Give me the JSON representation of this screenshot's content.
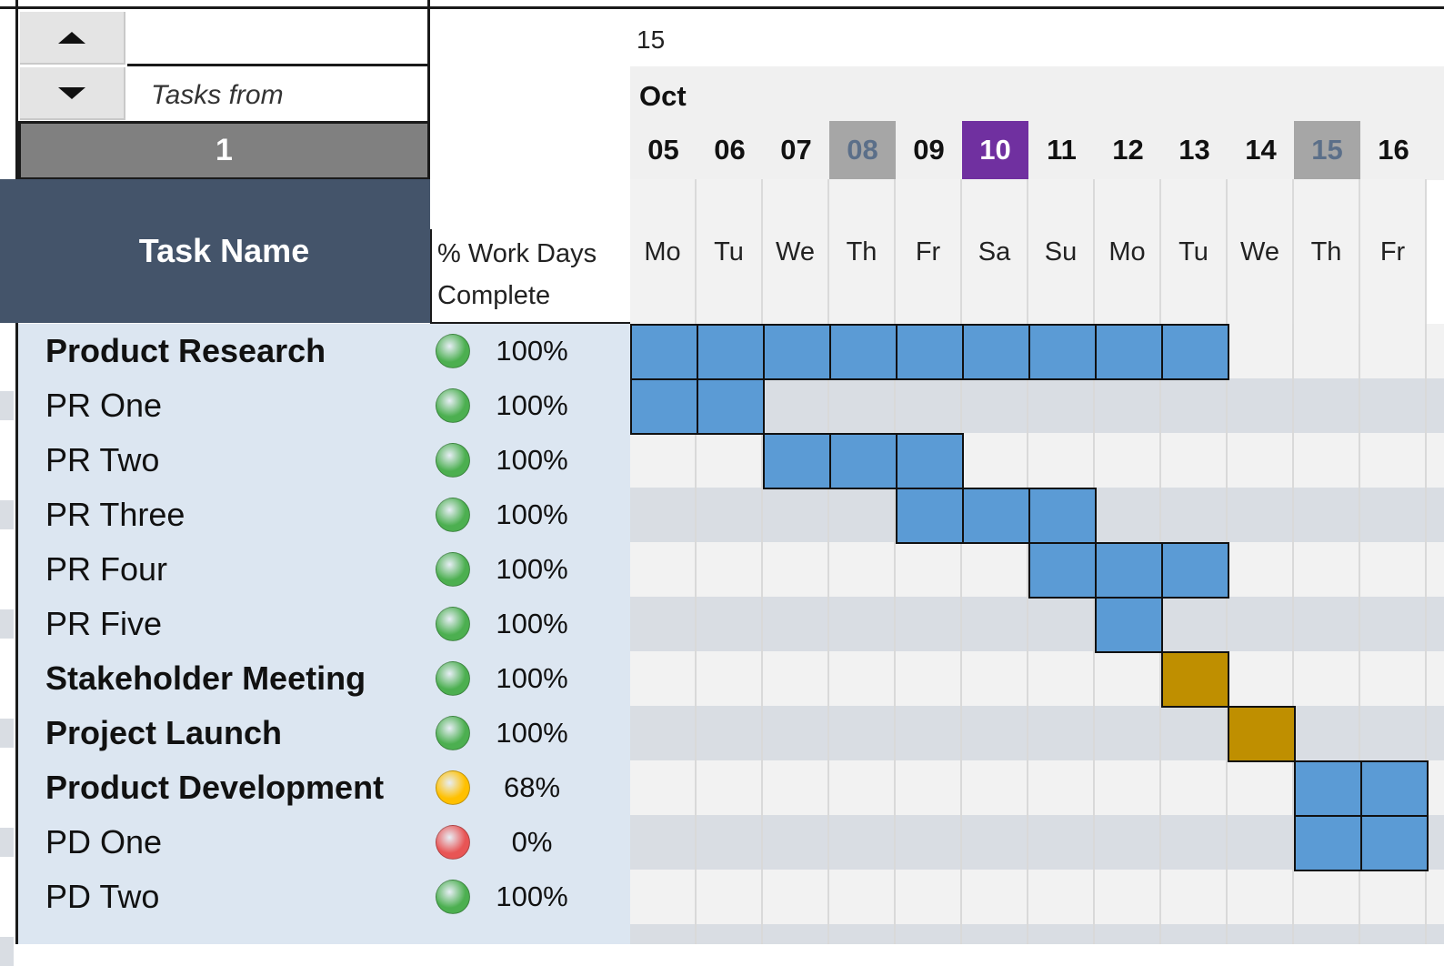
{
  "control": {
    "tasks_from_label": "Tasks from",
    "start_index": "1"
  },
  "header": {
    "task_name": "Task Name",
    "pct_line1": "% Work Days",
    "pct_line2": "Complete",
    "year_suffix": "15",
    "month": "Oct"
  },
  "days": [
    {
      "num": "05",
      "dow": "Mo",
      "mark": "none"
    },
    {
      "num": "06",
      "dow": "Tu",
      "mark": "none"
    },
    {
      "num": "07",
      "dow": "We",
      "mark": "none"
    },
    {
      "num": "08",
      "dow": "Th",
      "mark": "weekend"
    },
    {
      "num": "09",
      "dow": "Fr",
      "mark": "none"
    },
    {
      "num": "10",
      "dow": "Sa",
      "mark": "today"
    },
    {
      "num": "11",
      "dow": "Su",
      "mark": "none"
    },
    {
      "num": "12",
      "dow": "Mo",
      "mark": "none"
    },
    {
      "num": "13",
      "dow": "Tu",
      "mark": "none"
    },
    {
      "num": "14",
      "dow": "We",
      "mark": "none"
    },
    {
      "num": "15",
      "dow": "Th",
      "mark": "weekend"
    },
    {
      "num": "16",
      "dow": "Fr",
      "mark": "none"
    }
  ],
  "tasks": [
    {
      "name": "Product Research",
      "bold": true,
      "status": "green",
      "pct": "100%",
      "start": 0,
      "span": 9,
      "color": "blue"
    },
    {
      "name": "PR One",
      "bold": false,
      "status": "green",
      "pct": "100%",
      "start": 0,
      "span": 2,
      "color": "blue"
    },
    {
      "name": "PR Two",
      "bold": false,
      "status": "green",
      "pct": "100%",
      "start": 2,
      "span": 3,
      "color": "blue"
    },
    {
      "name": "PR Three",
      "bold": false,
      "status": "green",
      "pct": "100%",
      "start": 4,
      "span": 3,
      "color": "blue"
    },
    {
      "name": "PR Four",
      "bold": false,
      "status": "green",
      "pct": "100%",
      "start": 6,
      "span": 3,
      "color": "blue"
    },
    {
      "name": "PR Five",
      "bold": false,
      "status": "green",
      "pct": "100%",
      "start": 7,
      "span": 1,
      "color": "blue"
    },
    {
      "name": "Stakeholder Meeting",
      "bold": true,
      "status": "green",
      "pct": "100%",
      "start": 8,
      "span": 1,
      "color": "gold"
    },
    {
      "name": "Project Launch",
      "bold": true,
      "status": "green",
      "pct": "100%",
      "start": 9,
      "span": 1,
      "color": "gold"
    },
    {
      "name": "Product Development",
      "bold": true,
      "status": "yellow",
      "pct": "68%",
      "start": 10,
      "span": 2,
      "color": "blue"
    },
    {
      "name": "PD One",
      "bold": false,
      "status": "red",
      "pct": "0%",
      "start": 10,
      "span": 2,
      "color": "blue"
    },
    {
      "name": "PD Two",
      "bold": false,
      "status": "green",
      "pct": "100%",
      "start": 0,
      "span": 0,
      "color": "blue"
    }
  ],
  "colors": {
    "bar_blue": "#5b9bd5",
    "bar_gold": "#bf8f00",
    "row_alt": "#d9dde3",
    "row_plain": "#f2f2f2",
    "status_green": "#4caf50",
    "status_yellow": "#ffc000",
    "status_red": "#e85555"
  }
}
